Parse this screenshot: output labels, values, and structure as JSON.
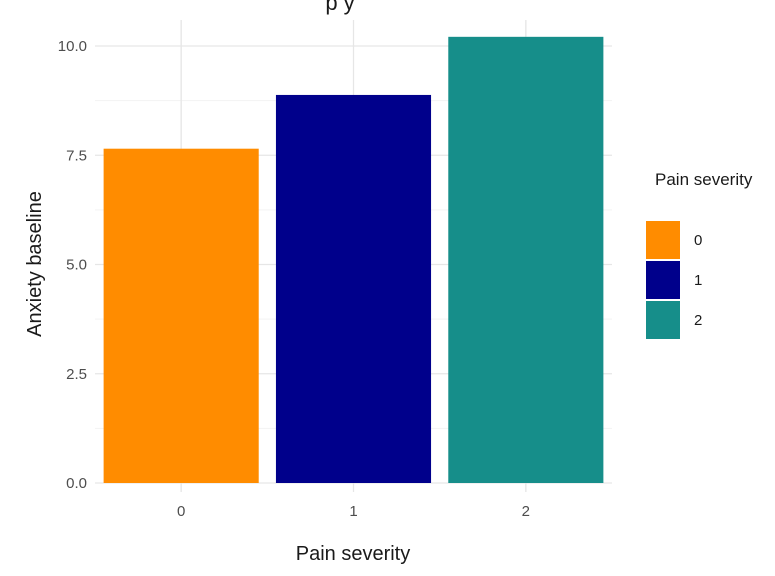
{
  "chart_data": {
    "type": "bar",
    "title": "",
    "title_visible_fragment": "p                y",
    "xlabel": "Pain severity",
    "ylabel": "Anxiety baseline",
    "categories": [
      "0",
      "1",
      "2"
    ],
    "values": [
      7.65,
      8.88,
      10.21
    ],
    "colors": [
      "#FF8C00",
      "#00008B",
      "#168E8A"
    ],
    "ylim": [
      0,
      10.25
    ],
    "yticks": [
      0,
      2.5,
      5,
      7.5,
      10
    ],
    "ytick_labels": [
      "0.0",
      "2.5",
      "5.0",
      "7.5",
      "10.0"
    ],
    "grid": true,
    "legend": {
      "title": "Pain severity",
      "position": "right",
      "items": [
        {
          "label": "0",
          "color": "#FF8C00"
        },
        {
          "label": "1",
          "color": "#00008B"
        },
        {
          "label": "2",
          "color": "#168E8A"
        }
      ]
    }
  }
}
